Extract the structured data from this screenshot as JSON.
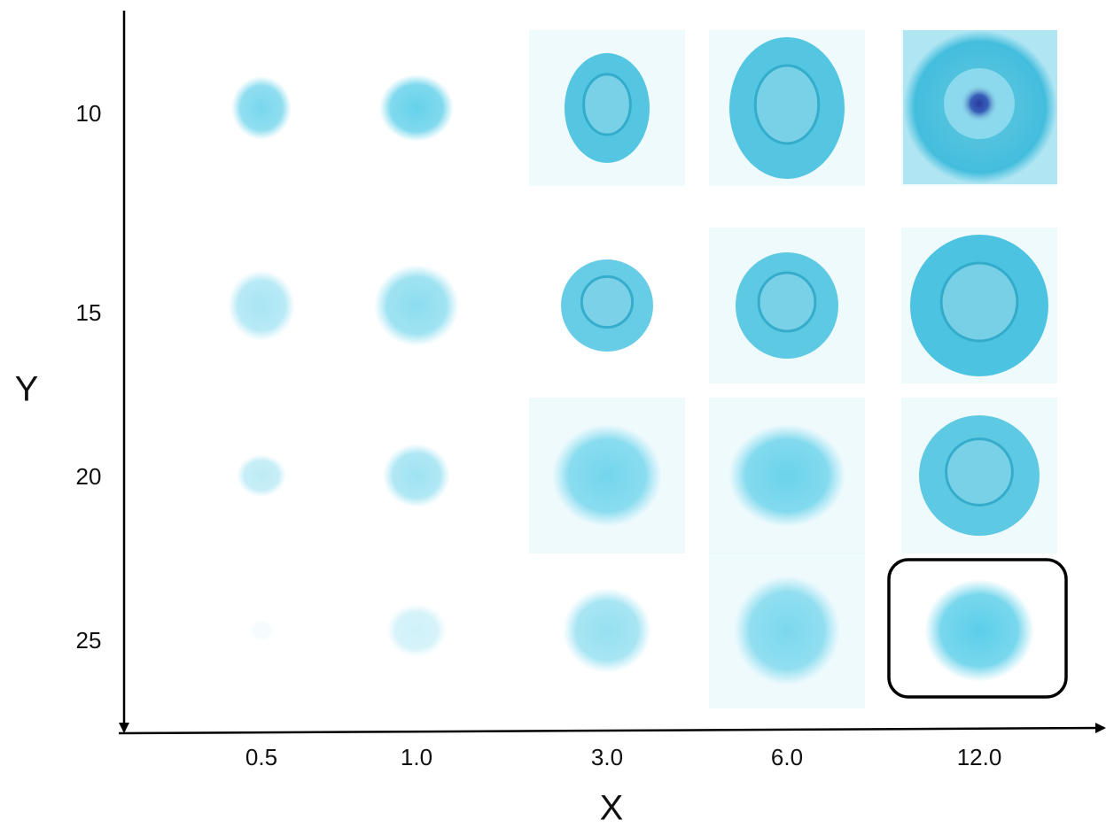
{
  "x_axis": {
    "label": "X",
    "ticks": [
      "0.5",
      "1.0",
      "3.0",
      "6.0",
      "12.0"
    ]
  },
  "y_axis": {
    "label": "Y",
    "ticks": [
      "10",
      "15",
      "20",
      "25"
    ]
  }
}
